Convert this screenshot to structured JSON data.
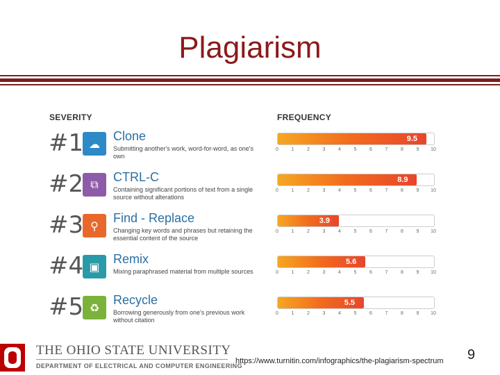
{
  "title": "Plagiarism",
  "headers": {
    "severity": "SEVERITY",
    "frequency": "FREQUENCY"
  },
  "items": [
    {
      "rank": "#1",
      "name": "Clone",
      "desc": "Submitting another's work, word-for-word, as one's own",
      "value": 9.5,
      "label": "9.5",
      "icon": "sheep-icon",
      "color": "#2d8ac7"
    },
    {
      "rank": "#2",
      "name": "CTRL-C",
      "desc": "Containing significant portions of text from a single source without alterations",
      "value": 8.9,
      "label": "8.9",
      "icon": "copy-icon",
      "color": "#8e5ba8"
    },
    {
      "rank": "#3",
      "name": "Find - Replace",
      "desc": "Changing key words and phrases but retaining the essential content of the source",
      "value": 3.9,
      "label": "3.9",
      "icon": "magnifier-icon",
      "color": "#e8682b"
    },
    {
      "rank": "#4",
      "name": "Remix",
      "desc": "Mixing paraphrased material from multiple sources",
      "value": 5.6,
      "label": "5.6",
      "icon": "cassette-icon",
      "color": "#2b9aa8"
    },
    {
      "rank": "#5",
      "name": "Recycle",
      "desc": "Borrowing generously from one's previous work without citation",
      "value": 5.5,
      "label": "5.5",
      "icon": "recycle-icon",
      "color": "#7bb23a"
    }
  ],
  "scale": [
    "0",
    "1",
    "2",
    "3",
    "4",
    "5",
    "6",
    "7",
    "8",
    "9",
    "10"
  ],
  "footer": {
    "university": "THE OHIO STATE UNIVERSITY",
    "department": "DEPARTMENT OF ELECTRICAL AND COMPUTER ENGINEERING",
    "url": "https://www.turnitin.com/infographics/the-plagiarism-spectrum",
    "page": "9"
  }
}
